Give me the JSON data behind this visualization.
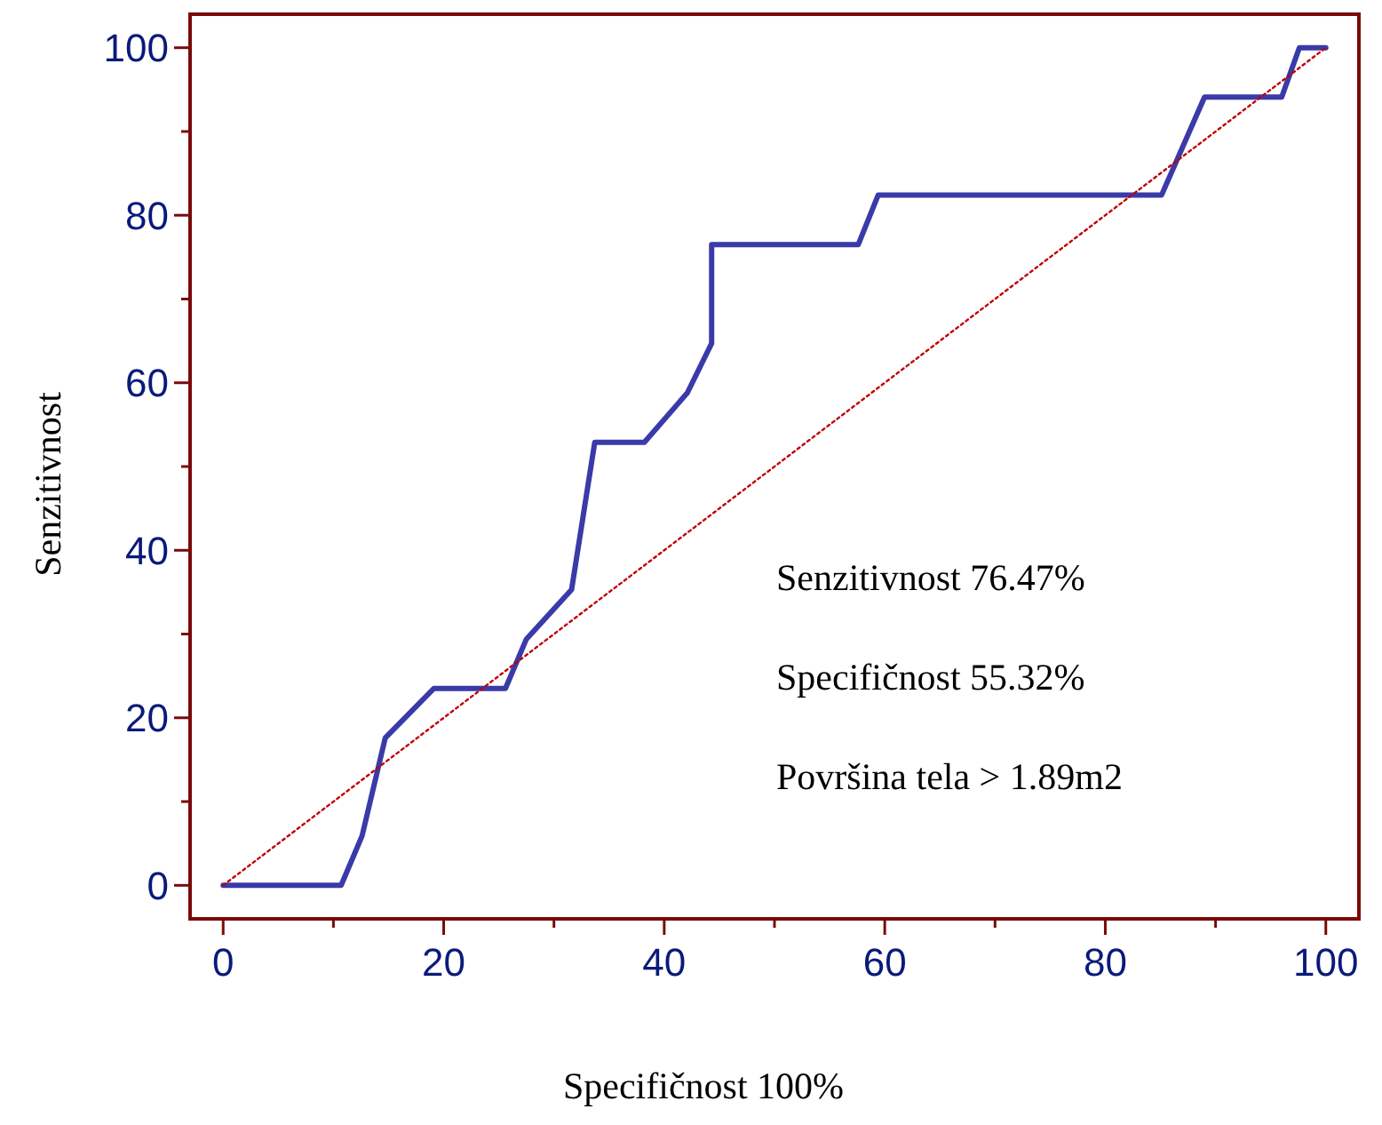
{
  "chart_data": {
    "type": "line",
    "xlabel": "Specifičnost 100%",
    "ylabel": "Senzitivnost",
    "xlim": [
      -3,
      103
    ],
    "ylim": [
      -4,
      104
    ],
    "xticks": [
      0,
      {
        "value": 10,
        "label": null
      },
      20,
      {
        "value": 30,
        "label": null
      },
      40,
      {
        "value": 50,
        "label": null
      },
      60,
      {
        "value": 70,
        "label": null
      },
      80,
      {
        "value": 90,
        "label": null
      },
      100
    ],
    "yticks": [
      0,
      {
        "value": 10,
        "label": null
      },
      20,
      {
        "value": 30,
        "label": null
      },
      40,
      {
        "value": 50,
        "label": null
      },
      60,
      {
        "value": 70,
        "label": null
      },
      80,
      {
        "value": 90,
        "label": null
      },
      100
    ],
    "marker": "none",
    "series": [
      {
        "color": "#3a3aa8",
        "line_style": "solid",
        "x": [
          0,
          10.7,
          12.6,
          14.7,
          19.1,
          25.6,
          27.5,
          31.6,
          33.7,
          38.2,
          42.1,
          44.3,
          44.3,
          57.6,
          59.4,
          85.1,
          89,
          96,
          97.6,
          100
        ],
        "values": [
          0,
          0,
          5.9,
          17.6,
          23.5,
          23.5,
          29.4,
          35.3,
          52.9,
          52.9,
          58.8,
          64.7,
          76.5,
          76.5,
          82.4,
          82.4,
          94.1,
          94.1,
          100,
          100
        ]
      },
      {
        "color": "#c00000",
        "line_style": "dotted",
        "x": [
          0,
          100
        ],
        "values": [
          0,
          100
        ]
      }
    ],
    "annotations": [
      "Senzitivnost  76.47%",
      "Specifičnost  55.32%",
      "Površina tela > 1.89m2"
    ]
  }
}
